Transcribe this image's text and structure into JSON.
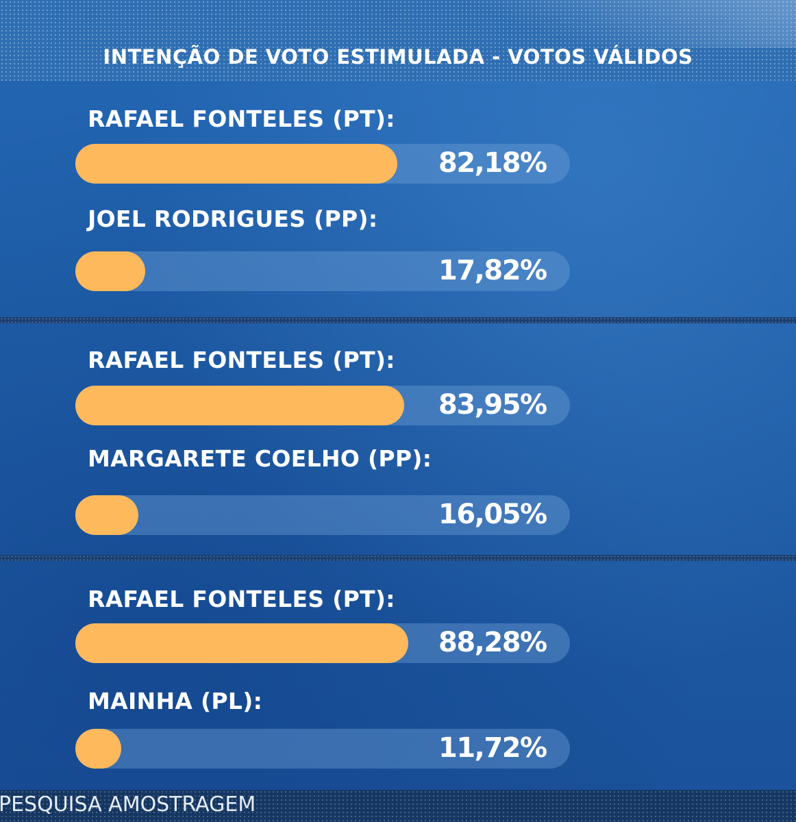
{
  "colors": {
    "background": "#1f5ea8",
    "bar_fill": "#fdb95c",
    "bar_track": "#6ea0d7",
    "text": "#ffffff"
  },
  "chart_data": {
    "type": "bar",
    "orientation": "horizontal",
    "title": "INTENÇÃO DE VOTO ESTIMULADA - VOTOS VÁLIDOS",
    "unit": "%",
    "value_range": [
      0,
      100
    ],
    "source": "PESQUISA AMOSTRAGEM",
    "scenarios": [
      {
        "candidates": [
          {
            "label": "RAFAEL FONTELES (PT):",
            "value": 82.18,
            "display": "82,18%"
          },
          {
            "label": "JOEL RODRIGUES (PP):",
            "value": 17.82,
            "display": "17,82%"
          }
        ]
      },
      {
        "candidates": [
          {
            "label": "RAFAEL FONTELES (PT):",
            "value": 83.95,
            "display": "83,95%"
          },
          {
            "label": "MARGARETE COELHO (PP):",
            "value": 16.05,
            "display": "16,05%"
          }
        ]
      },
      {
        "candidates": [
          {
            "label": "RAFAEL FONTELES (PT):",
            "value": 88.28,
            "display": "88,28%"
          },
          {
            "label": "MAINHA (PL):",
            "value": 11.72,
            "display": "11,72%"
          }
        ]
      }
    ]
  }
}
